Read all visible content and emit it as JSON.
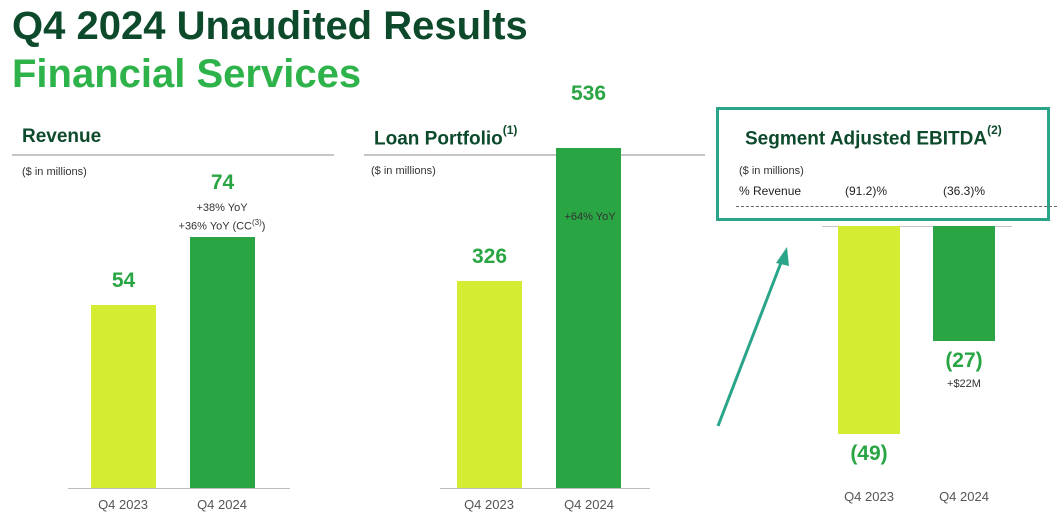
{
  "header": {
    "title": "Q4 2024 Unaudited Results",
    "subtitle": "Financial Services"
  },
  "colors": {
    "prior_year": "#d4ed33",
    "current_year": "#2aa544",
    "title_dark": "#0d4a2c",
    "title_green": "#2eb34a",
    "callout_border": "#2aa58a"
  },
  "chart_data": [
    {
      "type": "bar",
      "title": "Revenue",
      "units": "($ in millions)",
      "categories": [
        "Q4 2023",
        "Q4 2024"
      ],
      "values": [
        54,
        74
      ],
      "value_labels": [
        "54",
        "74"
      ],
      "annotations": [
        "+38% YoY",
        "+36% YoY (CC",
        "(3)",
        ")"
      ],
      "ylim": [
        0,
        90
      ]
    },
    {
      "type": "bar",
      "title": "Loan Portfolio",
      "title_sup": "(1)",
      "units": "($ in millions)",
      "categories": [
        "Q4 2023",
        "Q4 2024"
      ],
      "values": [
        326,
        536
      ],
      "value_labels": [
        "326",
        "536"
      ],
      "annotations": [
        "+64% YoY"
      ],
      "ylim": [
        0,
        620
      ]
    },
    {
      "type": "bar",
      "title": "Segment Adjusted EBITDA",
      "title_sup": "(2)",
      "units": "($ in millions)",
      "categories": [
        "Q4 2023",
        "Q4 2024"
      ],
      "values": [
        -49,
        -27
      ],
      "value_labels": [
        "(49)",
        "(27)"
      ],
      "annotations": [
        "+$22M"
      ],
      "pct_revenue_label": "% Revenue",
      "pct_revenue": [
        "(91.2)%",
        "(36.3)%"
      ],
      "ylim": [
        -55,
        0
      ]
    }
  ]
}
